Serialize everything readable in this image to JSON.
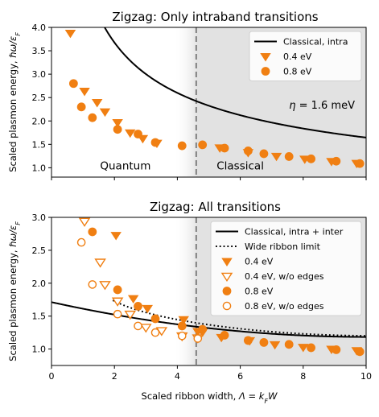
{
  "figure": {
    "xlabel": "Scaled ribbon width, Λ = k_F W",
    "colors": {
      "orange": "#f07f12",
      "classical_line": "#000000",
      "dashed_line": "#808080",
      "shade": "#e2e2e2"
    }
  },
  "chart_data": [
    {
      "type": "scatter",
      "title": "Zigzag: Only intraband transitions",
      "ylabel": "Scaled plasmon energy, ℏω/ε_F",
      "xlim": [
        0,
        10
      ],
      "ylim": [
        0.8,
        4.0
      ],
      "xticks": [],
      "yticks": [
        "1.0",
        "1.5",
        "2.0",
        "2.5",
        "3.0",
        "3.5",
        "4.0"
      ],
      "ytick_values": [
        1.0,
        1.5,
        2.0,
        2.5,
        3.0,
        3.5,
        4.0
      ],
      "divider_x": 4.6,
      "region_labels": {
        "left": "Quantum",
        "right": "Classical"
      },
      "annotation": "η = 1.6 meV",
      "legend": [
        "Classical, intra",
        "0.4 eV",
        "0.8 eV"
      ],
      "legend_position": "top-right",
      "series": [
        {
          "name": "Classical, intra",
          "kind": "line",
          "formula": "5.2 / sqrt(x)"
        },
        {
          "name": "0.4 eV",
          "kind": "marker-triangle-down",
          "x": [
            0.6,
            1.05,
            1.45,
            1.7,
            2.1,
            2.5,
            2.9,
            3.35,
            5.35,
            6.25,
            7.15,
            8.05,
            8.9,
            9.7
          ],
          "y": [
            3.88,
            2.64,
            2.4,
            2.2,
            1.97,
            1.75,
            1.63,
            1.53,
            1.43,
            1.33,
            1.25,
            1.19,
            1.14,
            1.1
          ]
        },
        {
          "name": "0.8 eV",
          "kind": "marker-circle",
          "x": [
            0.7,
            0.95,
            1.3,
            2.1,
            2.75,
            3.3,
            4.15,
            4.8,
            5.5,
            6.25,
            6.75,
            7.55,
            8.25,
            9.05,
            9.8
          ],
          "y": [
            2.8,
            2.3,
            2.07,
            1.82,
            1.72,
            1.54,
            1.47,
            1.49,
            1.42,
            1.36,
            1.3,
            1.24,
            1.19,
            1.14,
            1.09
          ]
        }
      ]
    },
    {
      "type": "scatter",
      "title": "Zigzag: All transitions",
      "ylabel": "Scaled plasmon energy, ℏω/ε_F",
      "xlabel": "Scaled ribbon width, Λ = k_F W",
      "xlim": [
        0,
        10
      ],
      "ylim": [
        0.75,
        3.0
      ],
      "xticks": [
        "0",
        "2",
        "4",
        "6",
        "8",
        "10"
      ],
      "xtick_values": [
        0,
        2,
        4,
        6,
        8,
        10
      ],
      "yticks": [
        "1.0",
        "1.5",
        "2.0",
        "2.5",
        "3.0"
      ],
      "ytick_values": [
        1.0,
        1.5,
        2.0,
        2.5,
        3.0
      ],
      "divider_x": 4.6,
      "legend": [
        "Classical, intra + inter",
        "Wide ribbon limit",
        "0.4 eV",
        "0.4 eV, w/o edges",
        "0.8 eV",
        "0.8 eV, w/o edges"
      ],
      "legend_position": "top-right",
      "series": [
        {
          "name": "Classical, intra + inter",
          "kind": "line",
          "formula": "1.712 - 0.1052*x + 0.00523*x^2"
        },
        {
          "name": "Wide ribbon limit",
          "kind": "dotted-line",
          "formula": "classical + 0.58/x^1.5"
        },
        {
          "name": "0.4 eV",
          "kind": "marker-triangle-down",
          "x": [
            2.05,
            2.6,
            3.05,
            4.2,
            4.65,
            4.8,
            5.4,
            6.3,
            7.1,
            8.0,
            8.9,
            9.7
          ],
          "y": [
            2.73,
            1.77,
            1.62,
            1.45,
            1.27,
            1.26,
            1.18,
            1.13,
            1.07,
            1.03,
            1.0,
            0.98
          ]
        },
        {
          "name": "0.4 eV, w/o edges",
          "kind": "marker-triangle-down-open",
          "x": [
            1.05,
            1.55,
            1.7,
            2.1,
            2.5,
            3.0,
            3.5,
            4.15,
            4.65
          ],
          "y": [
            2.94,
            2.32,
            1.98,
            1.73,
            1.53,
            1.33,
            1.28,
            1.2,
            1.17
          ]
        },
        {
          "name": "0.8 eV",
          "kind": "marker-circle",
          "x": [
            1.3,
            2.1,
            2.75,
            3.3,
            4.15,
            4.8,
            5.5,
            6.25,
            6.75,
            7.55,
            8.25,
            9.05,
            9.8
          ],
          "y": [
            2.78,
            1.9,
            1.65,
            1.46,
            1.35,
            1.3,
            1.21,
            1.13,
            1.1,
            1.07,
            1.02,
            0.99,
            0.96
          ]
        },
        {
          "name": "0.8 eV, w/o edges",
          "kind": "marker-circle-open",
          "x": [
            0.95,
            1.3,
            2.1,
            2.75,
            3.3,
            4.15,
            4.65
          ],
          "y": [
            2.62,
            1.98,
            1.53,
            1.35,
            1.25,
            1.2,
            1.16
          ]
        }
      ]
    }
  ]
}
